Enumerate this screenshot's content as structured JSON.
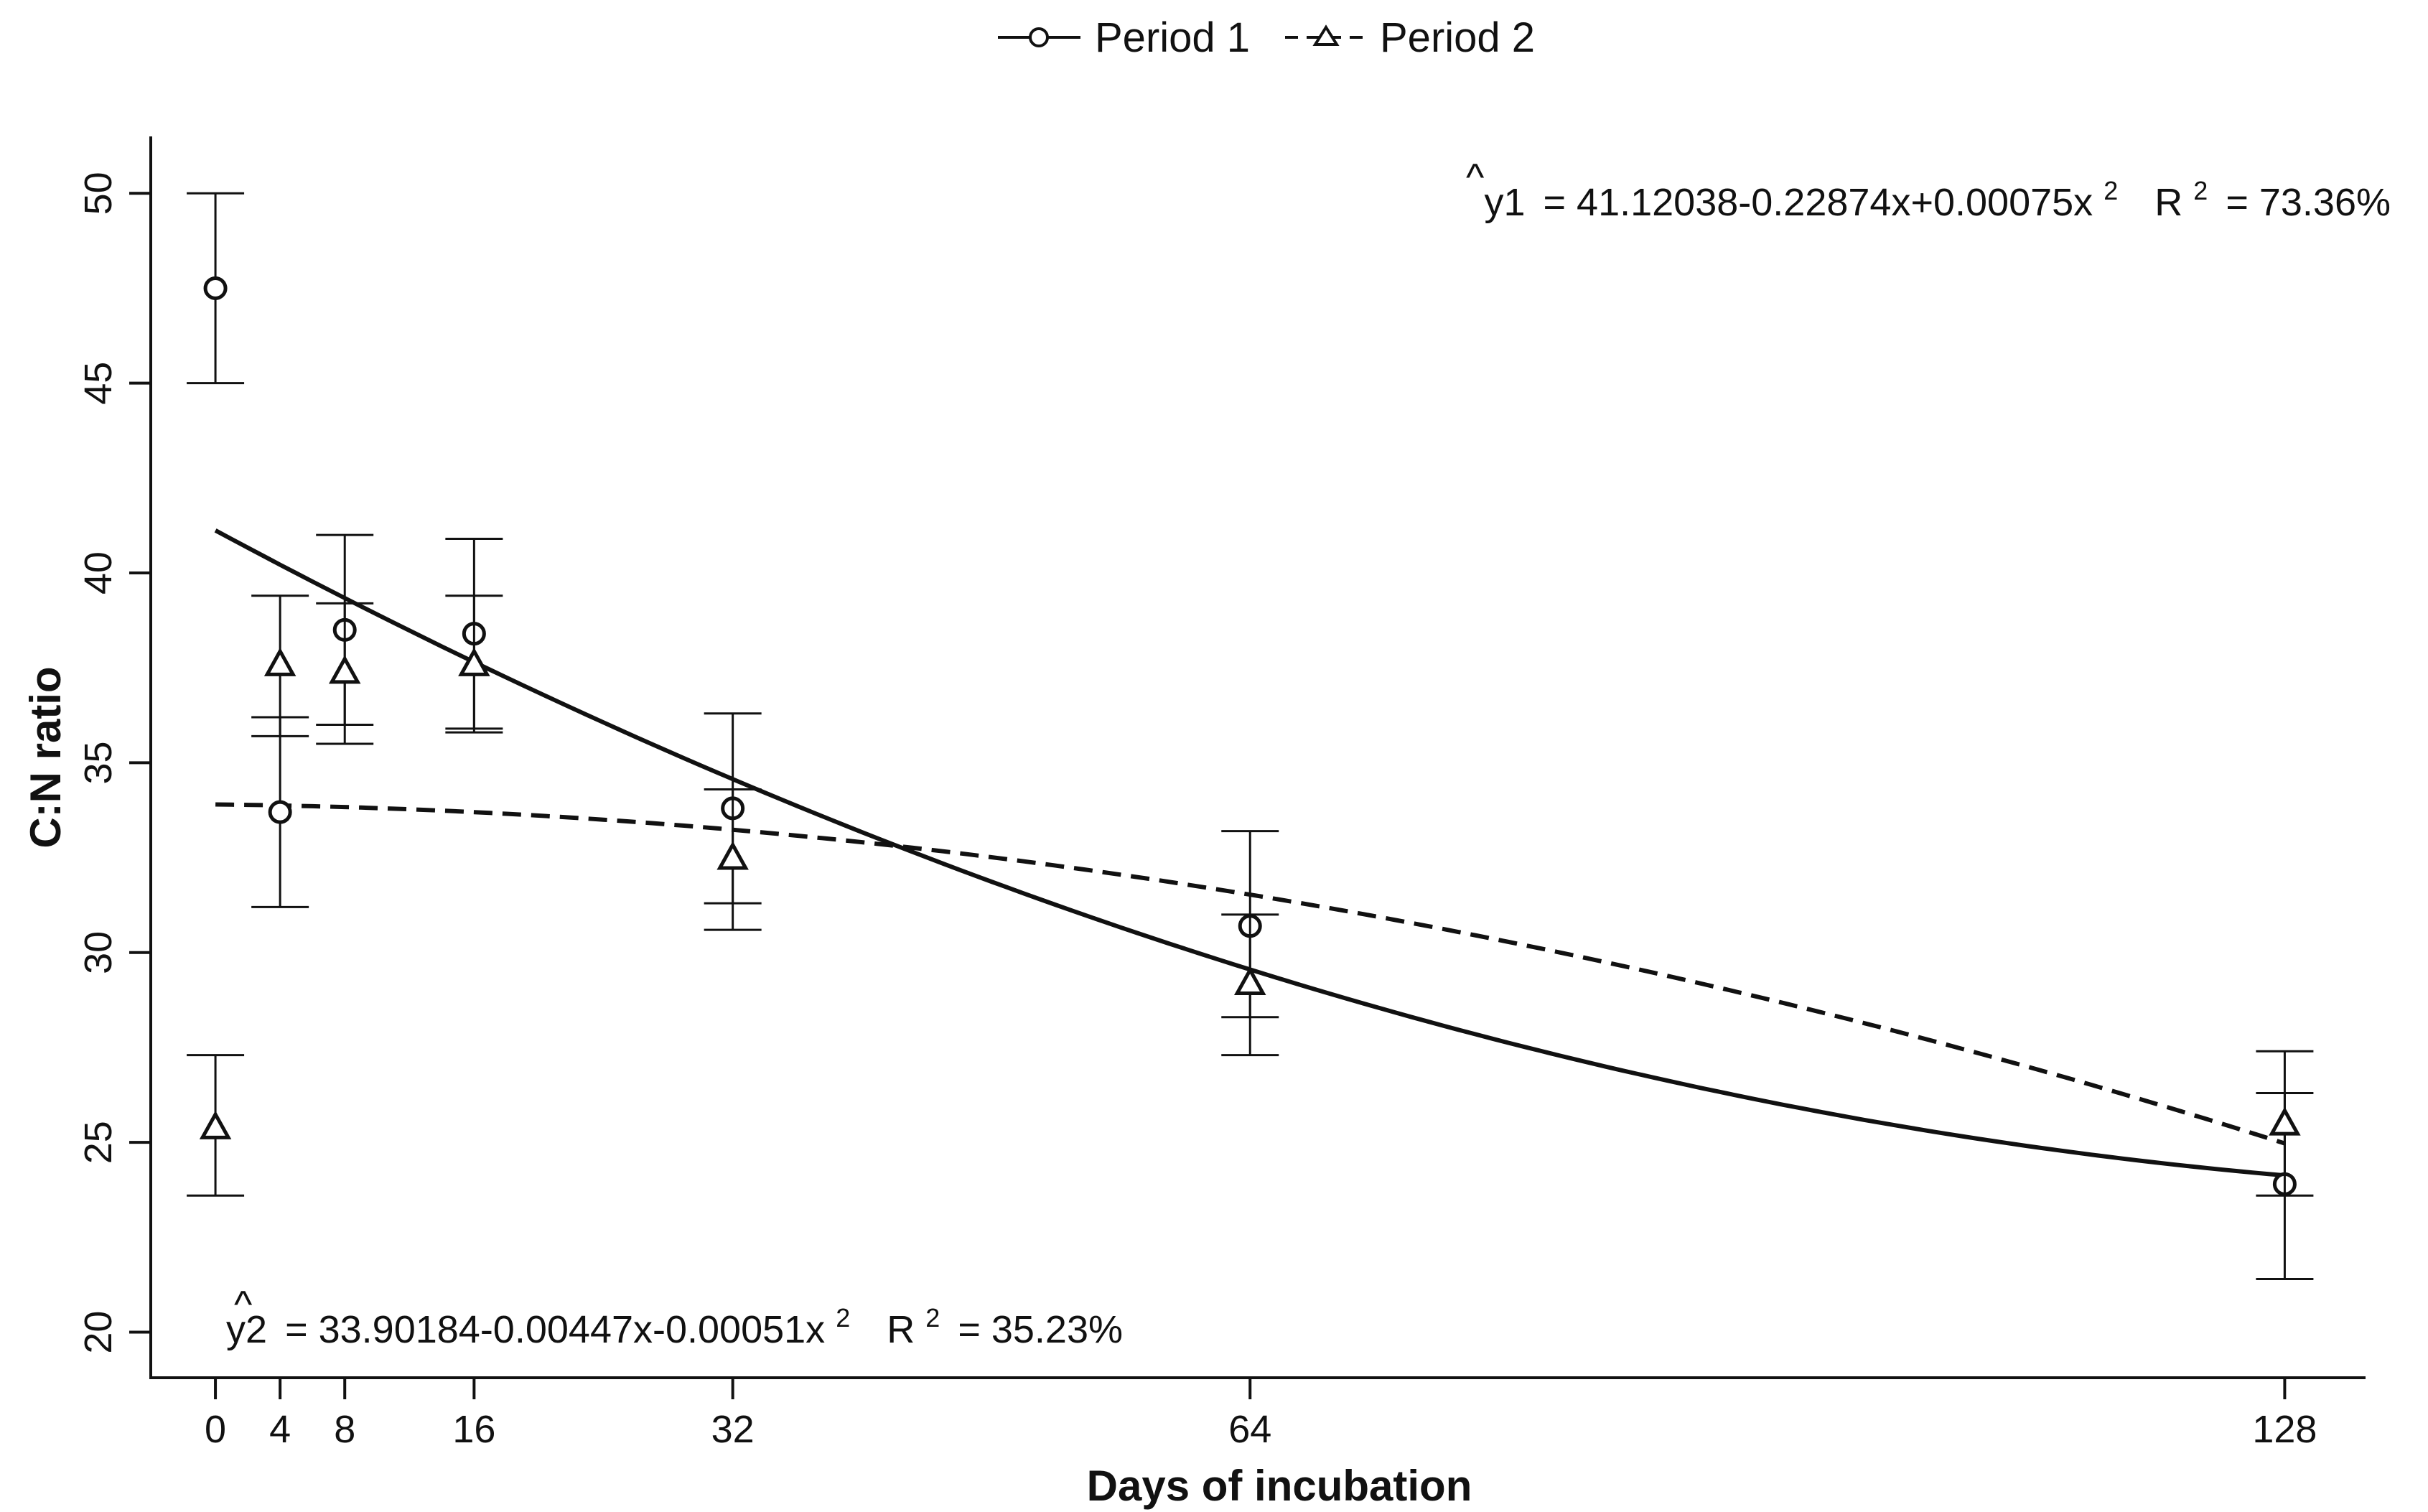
{
  "chart_data": {
    "type": "scatter",
    "title": "",
    "xlabel": "Days of incubation",
    "ylabel": "C:N ratio",
    "xlim": [
      -4,
      133
    ],
    "ylim": [
      18.8,
      51.5
    ],
    "x_ticks": [
      0,
      4,
      8,
      16,
      32,
      64,
      128
    ],
    "y_ticks": [
      20,
      25,
      30,
      35,
      40,
      45,
      50
    ],
    "legend_position": "top-center",
    "series": [
      {
        "name": "Period 1",
        "marker": "circle",
        "line_style": "solid",
        "points": [
          {
            "x": 0,
            "y": 47.5,
            "lower": 45.0,
            "upper": 50.0
          },
          {
            "x": 4,
            "y": 33.7,
            "lower": 31.2,
            "upper": 36.2
          },
          {
            "x": 8,
            "y": 38.5,
            "lower": 36.0,
            "upper": 41.0
          },
          {
            "x": 16,
            "y": 38.4,
            "lower": 35.9,
            "upper": 40.9
          },
          {
            "x": 32,
            "y": 33.8,
            "lower": 31.3,
            "upper": 36.3
          },
          {
            "x": 64,
            "y": 30.7,
            "lower": 28.3,
            "upper": 33.2
          },
          {
            "x": 128,
            "y": 23.9,
            "lower": 21.4,
            "upper": 26.3
          }
        ],
        "fit": {
          "a": 41.12038,
          "b": -0.22874,
          "c": 0.00075
        }
      },
      {
        "name": "Period 2",
        "marker": "triangle",
        "line_style": "dashed",
        "points": [
          {
            "x": 0,
            "y": 25.4,
            "lower": 23.6,
            "upper": 27.3
          },
          {
            "x": 4,
            "y": 37.6,
            "lower": 35.7,
            "upper": 39.4
          },
          {
            "x": 8,
            "y": 37.4,
            "lower": 35.5,
            "upper": 39.2
          },
          {
            "x": 16,
            "y": 37.6,
            "lower": 35.8,
            "upper": 39.4
          },
          {
            "x": 32,
            "y": 32.5,
            "lower": 30.6,
            "upper": 34.3
          },
          {
            "x": 64,
            "y": 29.2,
            "lower": 27.3,
            "upper": 31.0
          },
          {
            "x": 128,
            "y": 25.5,
            "lower": 23.6,
            "upper": 27.4
          }
        ],
        "fit": {
          "a": 33.90184,
          "b": -0.00447,
          "c": -0.00051
        }
      }
    ],
    "annotations": [
      {
        "id": "eq1",
        "position": "top-right",
        "hat": "^",
        "lhs": "y1",
        "rhs": "= 41.12038-0.22874x+0.00075x",
        "exponent": "2",
        "r2_label": "R",
        "r2_exponent": "2",
        "r2_value": "= 73.36%"
      },
      {
        "id": "eq2",
        "position": "bottom-left",
        "hat": "^",
        "lhs": "y2",
        "rhs": "= 33.90184-0.00447x-0.00051x",
        "exponent": "2",
        "r2_label": "R",
        "r2_exponent": "2",
        "r2_value": "= 35.23%"
      }
    ]
  }
}
